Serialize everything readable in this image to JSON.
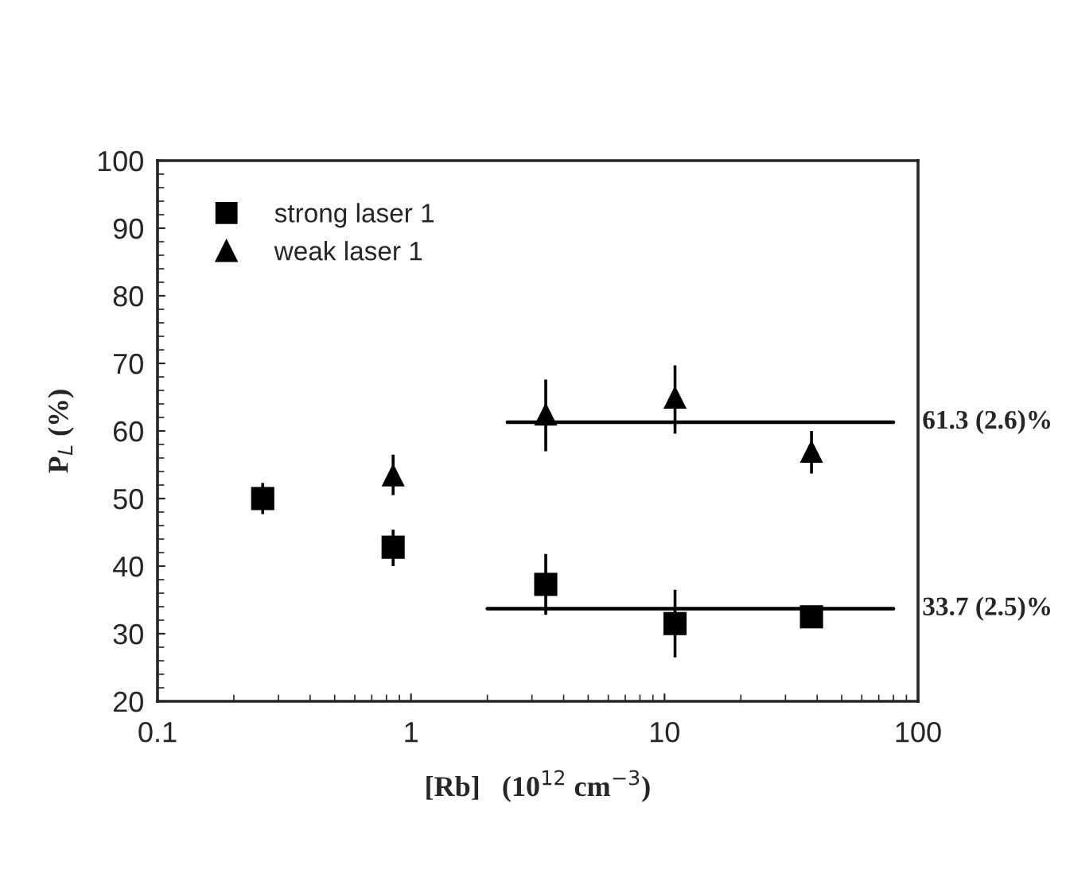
{
  "chart_data": {
    "type": "scatter",
    "xlabel": "[Rb]   (10$^{12}$ cm$^{−3}$)",
    "ylabel": "P$_{L}$ (%)",
    "log": "x",
    "xlim": [
      0.1,
      100
    ],
    "xticks": [
      0.1,
      1,
      10,
      100
    ],
    "ylim": [
      20,
      100
    ],
    "yticks": [
      20,
      30,
      40,
      50,
      60,
      70,
      80,
      90,
      100
    ],
    "grid": false,
    "legend": "top left",
    "series": [
      {
        "name": "strong laser 1",
        "color": "#000000",
        "marker": "square",
        "x": [
          0.26,
          0.85,
          3.4,
          11,
          38
        ],
        "values": [
          50,
          42.8,
          37.3,
          31.5,
          32.5
        ],
        "errors": [
          2.3,
          [
            40,
            45.4
          ],
          4.5,
          5,
          null
        ]
      },
      {
        "name": "weak laser 1",
        "color": "#000000",
        "marker": "triangle",
        "x": [
          0.85,
          3.4,
          11,
          38
        ],
        "values": [
          53.5,
          62.5,
          65,
          57
        ],
        "errors": [
          3,
          [
            57,
            67.6
          ],
          [
            59.6,
            69.7
          ],
          [
            53.7,
            60
          ]
        ]
      },
      {
        "type": "line",
        "color": "#000000",
        "x": [
          2.4,
          80
        ],
        "values": [
          61.3,
          61.3
        ]
      },
      {
        "type": "line",
        "color": "#000000",
        "x": [
          2,
          80
        ],
        "values": [
          33.7,
          33.7
        ]
      }
    ],
    "annotations": [
      {
        "text": "61.3 (2.6)%",
        "x": 80,
        "y": 61.3
      },
      {
        "text": "33.7 (2.5)%",
        "x": 80,
        "y": 33.7
      }
    ]
  }
}
